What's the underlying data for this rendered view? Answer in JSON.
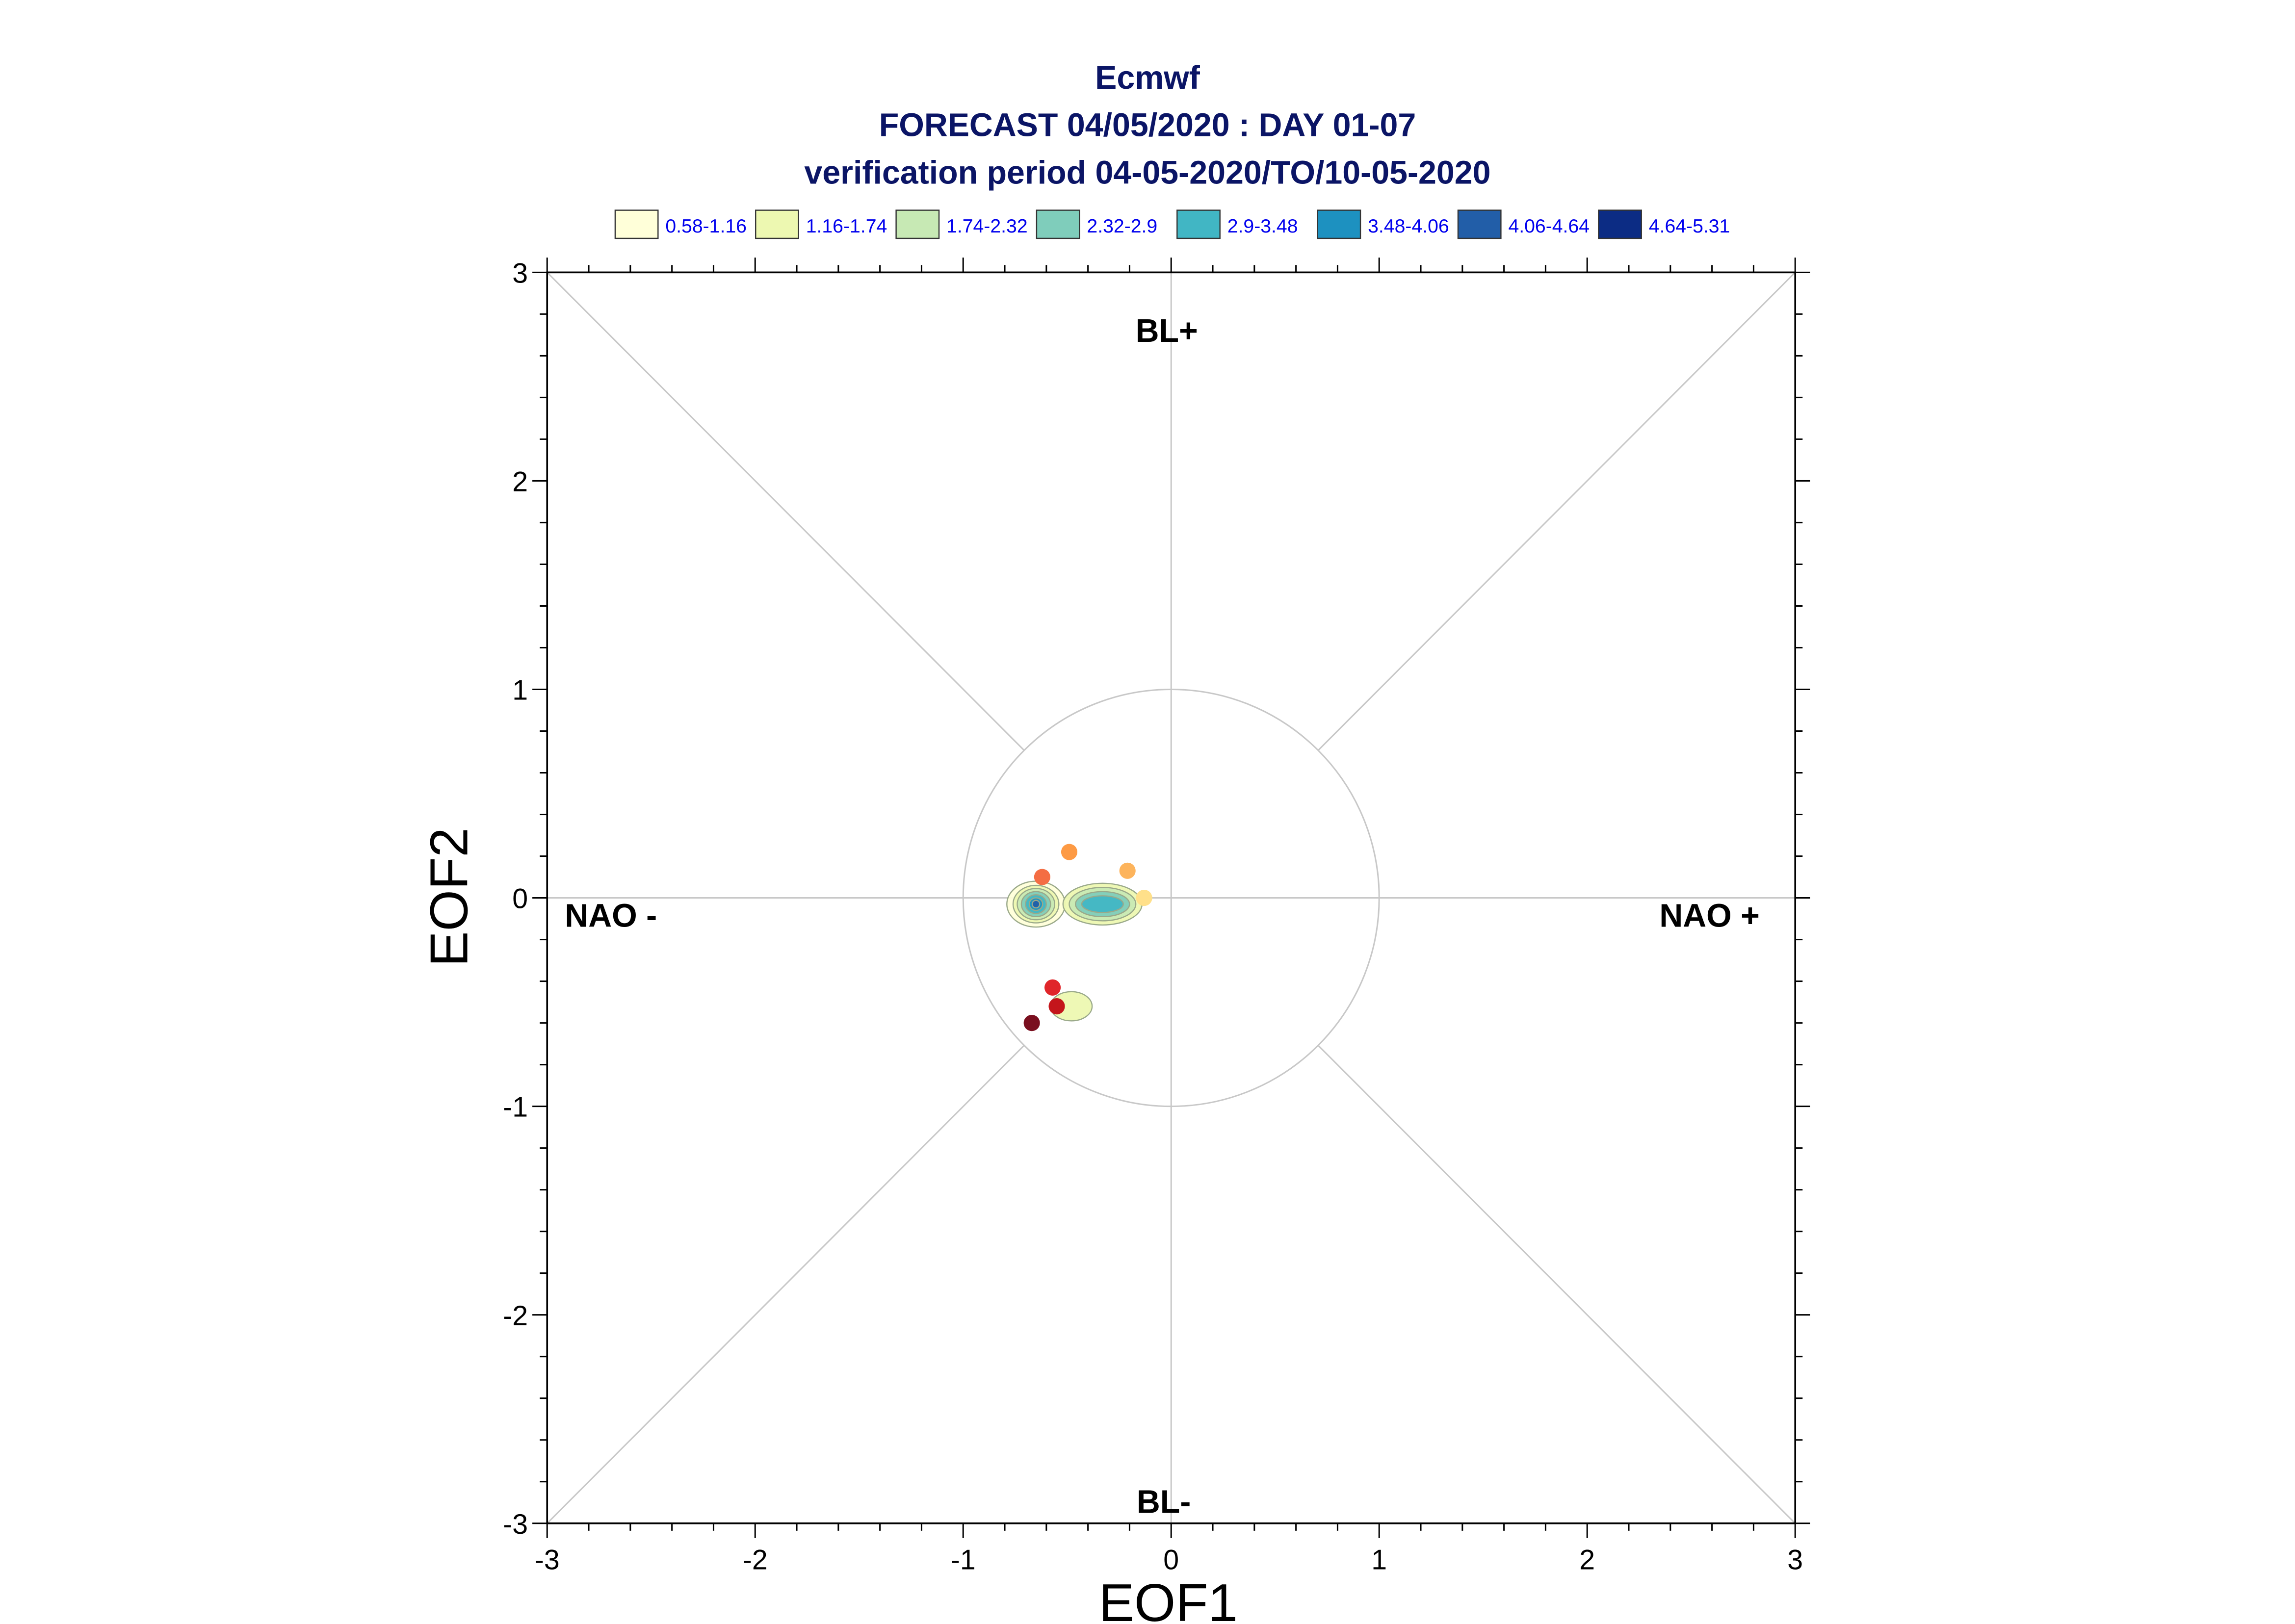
{
  "chart_data": {
    "type": "scatter",
    "title": "Ecmwf",
    "subtitle_lines": [
      "FORECAST 04/05/2020 : DAY 01-07",
      "verification period 04-05-2020/TO/10-05-2020"
    ],
    "xlabel": "EOF1",
    "ylabel": "EOF2",
    "xlim": [
      -3,
      3
    ],
    "ylim": [
      -3,
      3
    ],
    "x_ticks": [
      "-3",
      "-2",
      "-1",
      "0",
      "1",
      "2",
      "3"
    ],
    "y_ticks": [
      "-3",
      "-2",
      "-1",
      "0",
      "1",
      "2",
      "3"
    ],
    "grid": false,
    "legend_placement": "top",
    "density_legend": [
      {
        "label": "0.58-1.16",
        "color": "#ffffd9"
      },
      {
        "label": "1.16-1.74",
        "color": "#edf8b1"
      },
      {
        "label": "1.74-2.32",
        "color": "#c7e9b4"
      },
      {
        "label": "2.32-2.9",
        "color": "#7fcdbb"
      },
      {
        "label": "2.9-3.48",
        "color": "#41b6c4"
      },
      {
        "label": "3.48-4.06",
        "color": "#1d91c0"
      },
      {
        "label": "4.06-4.64",
        "color": "#225ea8"
      },
      {
        "label": "4.64-5.31",
        "color": "#0c2c84"
      }
    ],
    "regime_labels": {
      "top": "BL+",
      "bottom": "BL-",
      "left": "NAO -",
      "right": "NAO +"
    },
    "unit_circle_radius": 1,
    "daily_points": [
      {
        "x": -0.13,
        "y": 0.0,
        "color": "#ffe08a"
      },
      {
        "x": -0.21,
        "y": 0.13,
        "color": "#fdb45c"
      },
      {
        "x": -0.49,
        "y": 0.22,
        "color": "#fd9a44"
      },
      {
        "x": -0.62,
        "y": 0.1,
        "color": "#f46d43"
      },
      {
        "x": -0.57,
        "y": -0.43,
        "color": "#e0262a"
      },
      {
        "x": -0.55,
        "y": -0.52,
        "color": "#c4151b"
      },
      {
        "x": -0.67,
        "y": -0.6,
        "color": "#7a0f1f"
      }
    ],
    "density_blobs": [
      {
        "cx": -0.65,
        "cy": -0.03,
        "rx": 0.14,
        "ry": 0.11,
        "level": 0
      },
      {
        "cx": -0.65,
        "cy": -0.03,
        "rx": 0.11,
        "ry": 0.09,
        "level": 1
      },
      {
        "cx": -0.65,
        "cy": -0.03,
        "rx": 0.09,
        "ry": 0.075,
        "level": 2
      },
      {
        "cx": -0.65,
        "cy": -0.03,
        "rx": 0.07,
        "ry": 0.06,
        "level": 3
      },
      {
        "cx": -0.65,
        "cy": -0.03,
        "rx": 0.05,
        "ry": 0.045,
        "level": 4
      },
      {
        "cx": -0.65,
        "cy": -0.03,
        "rx": 0.032,
        "ry": 0.03,
        "level": 5
      },
      {
        "cx": -0.65,
        "cy": -0.03,
        "rx": 0.018,
        "ry": 0.018,
        "level": 6
      },
      {
        "cx": -0.33,
        "cy": -0.03,
        "rx": 0.19,
        "ry": 0.1,
        "level": 1
      },
      {
        "cx": -0.33,
        "cy": -0.03,
        "rx": 0.16,
        "ry": 0.08,
        "level": 2
      },
      {
        "cx": -0.33,
        "cy": -0.03,
        "rx": 0.13,
        "ry": 0.06,
        "level": 3
      },
      {
        "cx": -0.33,
        "cy": -0.03,
        "rx": 0.1,
        "ry": 0.04,
        "level": 4
      },
      {
        "cx": -0.48,
        "cy": -0.52,
        "rx": 0.1,
        "ry": 0.07,
        "level": 1
      }
    ]
  }
}
